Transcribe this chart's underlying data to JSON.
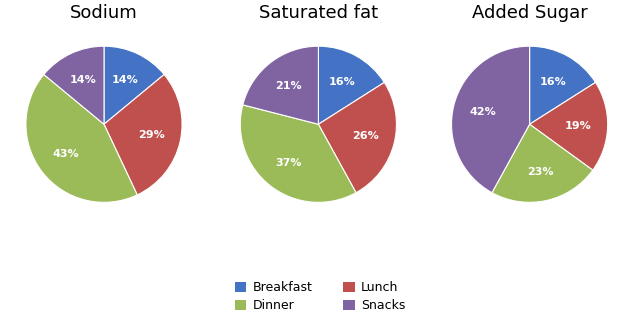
{
  "charts": [
    {
      "title": "Sodium",
      "values": [
        14,
        29,
        43,
        14
      ],
      "labels": [
        "14%",
        "29%",
        "43%",
        "14%"
      ],
      "categories": [
        "Breakfast",
        "Lunch",
        "Dinner",
        "Snacks"
      ],
      "startangle": 90,
      "colors": [
        "#4472C4",
        "#C0504D",
        "#9BBB59",
        "#8064A2"
      ]
    },
    {
      "title": "Saturated fat",
      "values": [
        16,
        26,
        37,
        21
      ],
      "labels": [
        "16%",
        "26%",
        "37%",
        "21%"
      ],
      "categories": [
        "Breakfast",
        "Lunch",
        "Dinner",
        "Snacks"
      ],
      "startangle": 90,
      "colors": [
        "#4472C4",
        "#C0504D",
        "#9BBB59",
        "#8064A2"
      ]
    },
    {
      "title": "Added Sugar",
      "values": [
        16,
        19,
        23,
        42
      ],
      "labels": [
        "16%",
        "19%",
        "23%",
        "42%"
      ],
      "categories": [
        "Breakfast",
        "Lunch",
        "Dinner",
        "Snacks"
      ],
      "startangle": 90,
      "colors": [
        "#4472C4",
        "#C0504D",
        "#9BBB59",
        "#8064A2"
      ]
    }
  ],
  "legend_labels": [
    "Breakfast",
    "Lunch",
    "Dinner",
    "Snacks"
  ],
  "legend_colors": [
    "#4472C4",
    "#C0504D",
    "#9BBB59",
    "#8064A2"
  ],
  "background_color": "#FFFFFF",
  "title_fontsize": 13,
  "label_fontsize": 8,
  "legend_fontsize": 9
}
